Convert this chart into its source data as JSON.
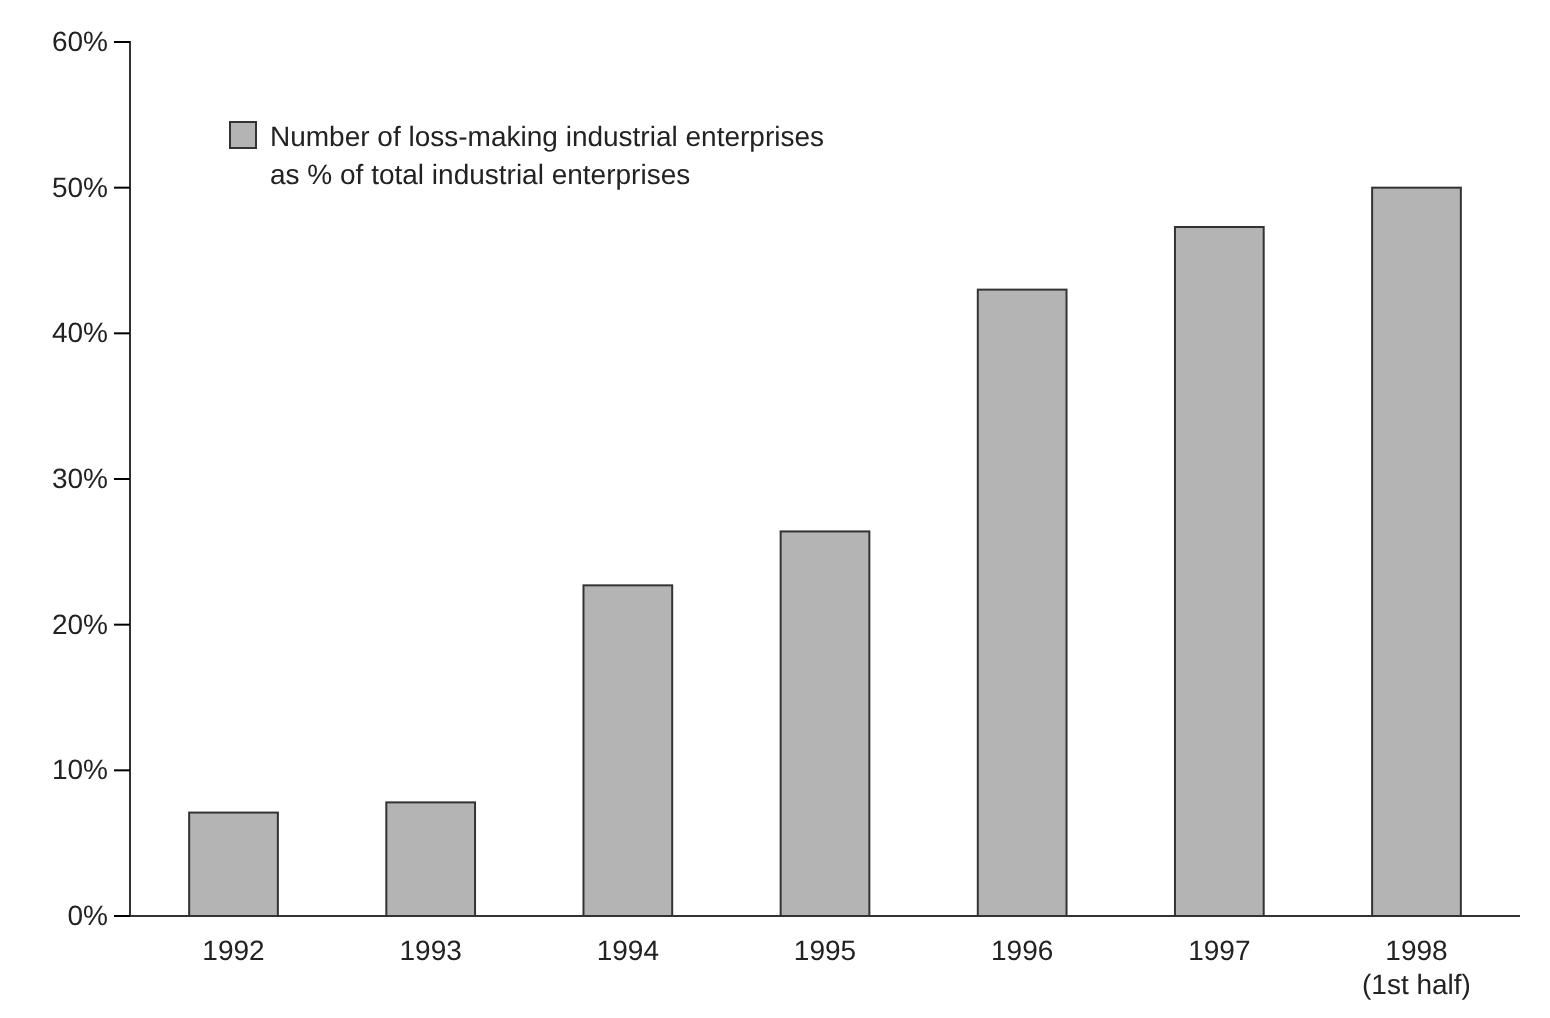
{
  "chart_data": {
    "type": "bar",
    "categories": [
      "1992",
      "1993",
      "1994",
      "1995",
      "1996",
      "1997",
      "1998\n(1st half)"
    ],
    "series": [
      {
        "name": "Number of loss-making industrial enterprises\nas % of total industrial enterprises",
        "color": "#b4b4b4",
        "values": [
          7.1,
          7.8,
          22.7,
          26.4,
          43.0,
          47.3,
          50.0
        ]
      }
    ],
    "ylim": [
      0,
      60
    ],
    "yticks": [
      {
        "value": 0,
        "label": "0%"
      },
      {
        "value": 10,
        "label": "10%"
      },
      {
        "value": 20,
        "label": "20%"
      },
      {
        "value": 30,
        "label": "30%"
      },
      {
        "value": 40,
        "label": "40%"
      },
      {
        "value": 50,
        "label": "50%"
      },
      {
        "value": 60,
        "label": "60%"
      }
    ],
    "grid": false,
    "legend": "top left"
  }
}
